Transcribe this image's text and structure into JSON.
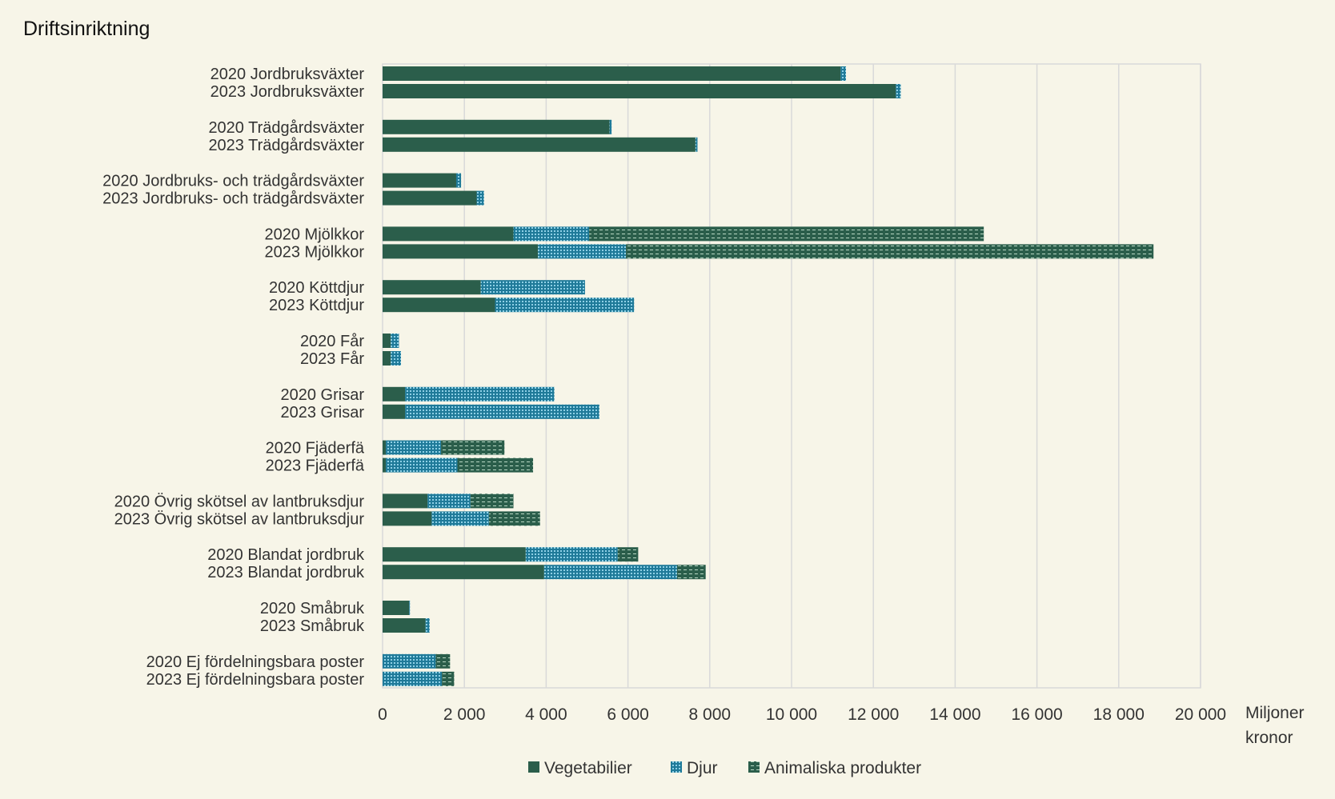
{
  "chart_data": {
    "type": "bar",
    "orientation": "horizontal",
    "stacked": true,
    "title": "Driftsinriktning",
    "x_unit_label_line1": "Miljoner",
    "x_unit_label_line2": "kronor",
    "xlim": [
      0,
      20000
    ],
    "x_ticks": [
      0,
      2000,
      4000,
      6000,
      8000,
      10000,
      12000,
      14000,
      16000,
      18000,
      20000
    ],
    "x_tick_labels": [
      "0",
      "2 000",
      "4 000",
      "6 000",
      "8 000",
      "10 000",
      "12 000",
      "14 000",
      "16 000",
      "18 000",
      "20 000"
    ],
    "grid": true,
    "legend_position": "bottom",
    "categories": [
      "2020 Jordbruksväxter",
      "2023 Jordbruksväxter",
      "2020 Trädgårdsväxter",
      "2023 Trädgårdsväxter",
      "2020 Jordbruks- och trädgårdsväxter",
      "2023 Jordbruks- och trädgårdsväxter",
      "2020 Mjölkkor",
      "2023 Mjölkkor",
      "2020 Köttdjur",
      "2023 Köttdjur",
      "2020 Får",
      "2023 Får",
      "2020 Grisar",
      "2023 Grisar",
      "2020 Fjäderfä",
      "2023 Fjäderfä",
      "2020 Övrig skötsel av lantbruksdjur",
      "2023 Övrig skötsel av lantbruksdjur",
      "2020 Blandat jordbruk",
      "2023 Blandat jordbruk",
      "2020 Småbruk",
      "2023 Småbruk",
      "2020 Ej fördelningsbara poster",
      "2023 Ej fördelningsbara poster"
    ],
    "series": [
      {
        "name": "Vegetabilier",
        "color": "#2b5e4b",
        "pattern": "solid",
        "values": [
          11200,
          12550,
          5550,
          7650,
          1800,
          2300,
          3200,
          3800,
          2400,
          2750,
          200,
          200,
          550,
          550,
          80,
          80,
          1100,
          1200,
          3500,
          3950,
          650,
          1050,
          0,
          0
        ]
      },
      {
        "name": "Djur",
        "color": "#1f7a99",
        "pattern": "dots",
        "values": [
          130,
          120,
          50,
          50,
          120,
          180,
          1850,
          2150,
          2550,
          3400,
          200,
          250,
          3650,
          4750,
          1350,
          1750,
          1050,
          1400,
          2250,
          3250,
          20,
          100,
          1300,
          1450
        ]
      },
      {
        "name": "Animaliska produkter",
        "color": "#2b5e4b",
        "pattern": "dashes",
        "values": [
          0,
          0,
          0,
          0,
          0,
          0,
          9650,
          12900,
          0,
          0,
          0,
          0,
          0,
          0,
          1550,
          1850,
          1050,
          1250,
          500,
          700,
          0,
          0,
          350,
          300
        ]
      }
    ]
  }
}
